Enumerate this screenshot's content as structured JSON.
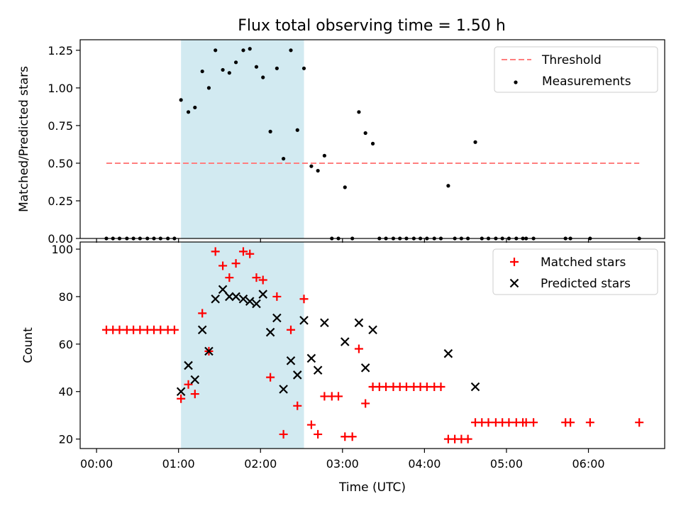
{
  "figure_title": "Flux total observing time = 1.50 h",
  "colors": {
    "threshold": "#ff7f7f",
    "measurement": "#000000",
    "matched": "#ff0000",
    "predicted": "#000000",
    "shade": "#add8e6"
  },
  "chart_data": [
    {
      "type": "scatter",
      "title": "Flux total observing time = 1.50 h",
      "xlabel": "",
      "ylabel": "Matched/Predicted stars",
      "ylim": [
        0,
        1.32
      ],
      "yticks": [
        "0.00",
        "0.25",
        "0.50",
        "0.75",
        "1.00",
        "1.25"
      ],
      "ytick_values": [
        0,
        0.25,
        0.5,
        0.75,
        1.0,
        1.25
      ],
      "xlim": [
        -0.2,
        6.93
      ],
      "xtick_values": [
        0,
        1,
        2,
        3,
        4,
        5,
        6
      ],
      "legend_location": "top-right",
      "legend": [
        "Threshold",
        "Measurements"
      ],
      "shaded_interval": [
        1.03,
        2.53
      ],
      "threshold": {
        "name": "Threshold",
        "y": 0.5,
        "x_range": [
          0.12,
          6.62
        ]
      },
      "series": [
        {
          "name": "Measurements",
          "x": [
            0.12,
            0.2,
            0.28,
            0.37,
            0.45,
            0.53,
            0.62,
            0.7,
            0.78,
            0.87,
            0.95,
            1.03,
            1.12,
            1.2,
            1.29,
            1.37,
            1.45,
            1.54,
            1.62,
            1.7,
            1.79,
            1.87,
            1.95,
            2.03,
            2.12,
            2.2,
            2.28,
            2.37,
            2.45,
            2.53,
            2.62,
            2.7,
            2.78,
            2.87,
            2.95,
            3.03,
            3.12,
            3.2,
            3.28,
            3.37,
            3.45,
            3.53,
            3.62,
            3.7,
            3.78,
            3.87,
            3.95,
            4.03,
            4.12,
            4.2,
            4.29,
            4.37,
            4.45,
            4.53,
            4.62,
            4.7,
            4.78,
            4.87,
            4.95,
            5.03,
            5.12,
            5.2,
            5.24,
            5.33,
            5.72,
            5.78,
            6.02,
            6.62
          ],
          "y": [
            0,
            0,
            0,
            0,
            0,
            0,
            0,
            0,
            0,
            0,
            0,
            0.92,
            0.84,
            0.87,
            1.11,
            1.0,
            1.25,
            1.12,
            1.1,
            1.17,
            1.25,
            1.26,
            1.14,
            1.07,
            0.71,
            1.13,
            0.53,
            1.25,
            0.72,
            1.13,
            0.48,
            0.45,
            0.55,
            0,
            0,
            0.34,
            0,
            0.84,
            0.7,
            0.63,
            0,
            0,
            0,
            0,
            0,
            0,
            0,
            0,
            0,
            0,
            0.35,
            0,
            0,
            0,
            0.64,
            0,
            0,
            0,
            0,
            0,
            0,
            0,
            0,
            0,
            0,
            0,
            0,
            0
          ]
        }
      ]
    },
    {
      "type": "scatter",
      "title": "",
      "xlabel": "Time (UTC)",
      "ylabel": "Count",
      "ylim": [
        16,
        103
      ],
      "yticks": [
        "20",
        "40",
        "60",
        "80",
        "100"
      ],
      "ytick_values": [
        20,
        40,
        60,
        80,
        100
      ],
      "xlim": [
        -0.2,
        6.93
      ],
      "xtick_values": [
        0,
        1,
        2,
        3,
        4,
        5,
        6
      ],
      "xtick_labels": [
        "00:00",
        "01:00",
        "02:00",
        "03:00",
        "04:00",
        "05:00",
        "06:00"
      ],
      "legend_location": "top-right",
      "legend": [
        "Matched stars",
        "Predicted stars"
      ],
      "shaded_interval": [
        1.03,
        2.53
      ],
      "series": [
        {
          "name": "Matched stars",
          "marker": "+",
          "x": [
            0.12,
            0.2,
            0.28,
            0.37,
            0.45,
            0.53,
            0.62,
            0.7,
            0.78,
            0.87,
            0.95,
            1.03,
            1.12,
            1.2,
            1.29,
            1.37,
            1.45,
            1.54,
            1.62,
            1.7,
            1.79,
            1.87,
            1.95,
            2.03,
            2.12,
            2.2,
            2.28,
            2.37,
            2.45,
            2.53,
            2.62,
            2.7,
            2.78,
            2.87,
            2.95,
            3.03,
            3.12,
            3.2,
            3.28,
            3.37,
            3.45,
            3.53,
            3.62,
            3.7,
            3.78,
            3.87,
            3.95,
            4.03,
            4.12,
            4.2,
            4.29,
            4.37,
            4.45,
            4.53,
            4.62,
            4.7,
            4.78,
            4.87,
            4.95,
            5.03,
            5.12,
            5.2,
            5.24,
            5.33,
            5.72,
            5.78,
            6.02,
            6.62
          ],
          "y": [
            66,
            66,
            66,
            66,
            66,
            66,
            66,
            66,
            66,
            66,
            66,
            37,
            43,
            39,
            73,
            57,
            99,
            93,
            88,
            94,
            99,
            98,
            88,
            87,
            46,
            80,
            22,
            66,
            34,
            79,
            26,
            22,
            38,
            38,
            38,
            21,
            21,
            58,
            35,
            42,
            42,
            42,
            42,
            42,
            42,
            42,
            42,
            42,
            42,
            42,
            20,
            20,
            20,
            20,
            27,
            27,
            27,
            27,
            27,
            27,
            27,
            27,
            27,
            27,
            27,
            27,
            27,
            27
          ]
        },
        {
          "name": "Predicted stars",
          "marker": "x",
          "x": [
            1.03,
            1.12,
            1.2,
            1.29,
            1.37,
            1.45,
            1.54,
            1.62,
            1.7,
            1.79,
            1.87,
            1.95,
            2.03,
            2.12,
            2.2,
            2.28,
            2.37,
            2.45,
            2.53,
            2.62,
            2.7,
            2.78,
            3.03,
            3.2,
            3.28,
            3.37,
            4.29,
            4.62
          ],
          "y": [
            40,
            51,
            45,
            66,
            57,
            79,
            83,
            80,
            80,
            79,
            78,
            77,
            81,
            65,
            71,
            41,
            53,
            47,
            70,
            54,
            49,
            69,
            61,
            69,
            50,
            66,
            56,
            42
          ]
        }
      ]
    }
  ]
}
